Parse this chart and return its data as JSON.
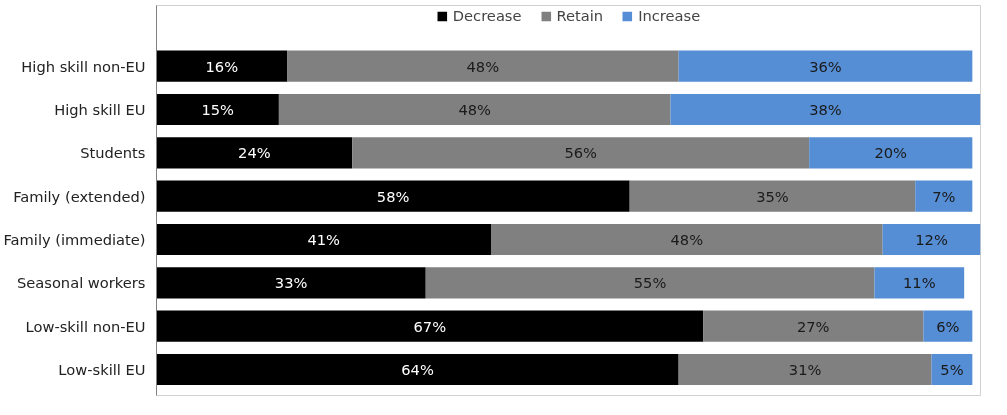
{
  "chart_data": {
    "type": "bar",
    "orientation": "horizontal",
    "stacked": true,
    "tick_labels": "y",
    "legend": "top",
    "categories": [
      "High skill non-EU",
      "High skill EU",
      "Students",
      "Family (extended)",
      "Family (immediate)",
      "Seasonal workers",
      "Low-skill non-EU",
      "Low-skill EU"
    ],
    "series": [
      {
        "name": "Decrease",
        "color": "#000000",
        "values": [
          16,
          15,
          24,
          58,
          41,
          33,
          67,
          64
        ],
        "value_labels": [
          "16%",
          "15%",
          "24%",
          "58%",
          "41%",
          "33%",
          "67%",
          "64%"
        ]
      },
      {
        "name": "Retain",
        "color": "#808080",
        "values": [
          48,
          48,
          56,
          35,
          48,
          55,
          27,
          31
        ],
        "value_labels": [
          "48%",
          "48%",
          "56%",
          "35%",
          "48%",
          "55%",
          "27%",
          "31%"
        ]
      },
      {
        "name": "Increase",
        "color": "#558ed5",
        "values": [
          36,
          38,
          20,
          7,
          12,
          11,
          6,
          5
        ],
        "value_labels": [
          "36%",
          "38%",
          "20%",
          "7%",
          "12%",
          "11%",
          "6%",
          "5%"
        ]
      }
    ]
  }
}
